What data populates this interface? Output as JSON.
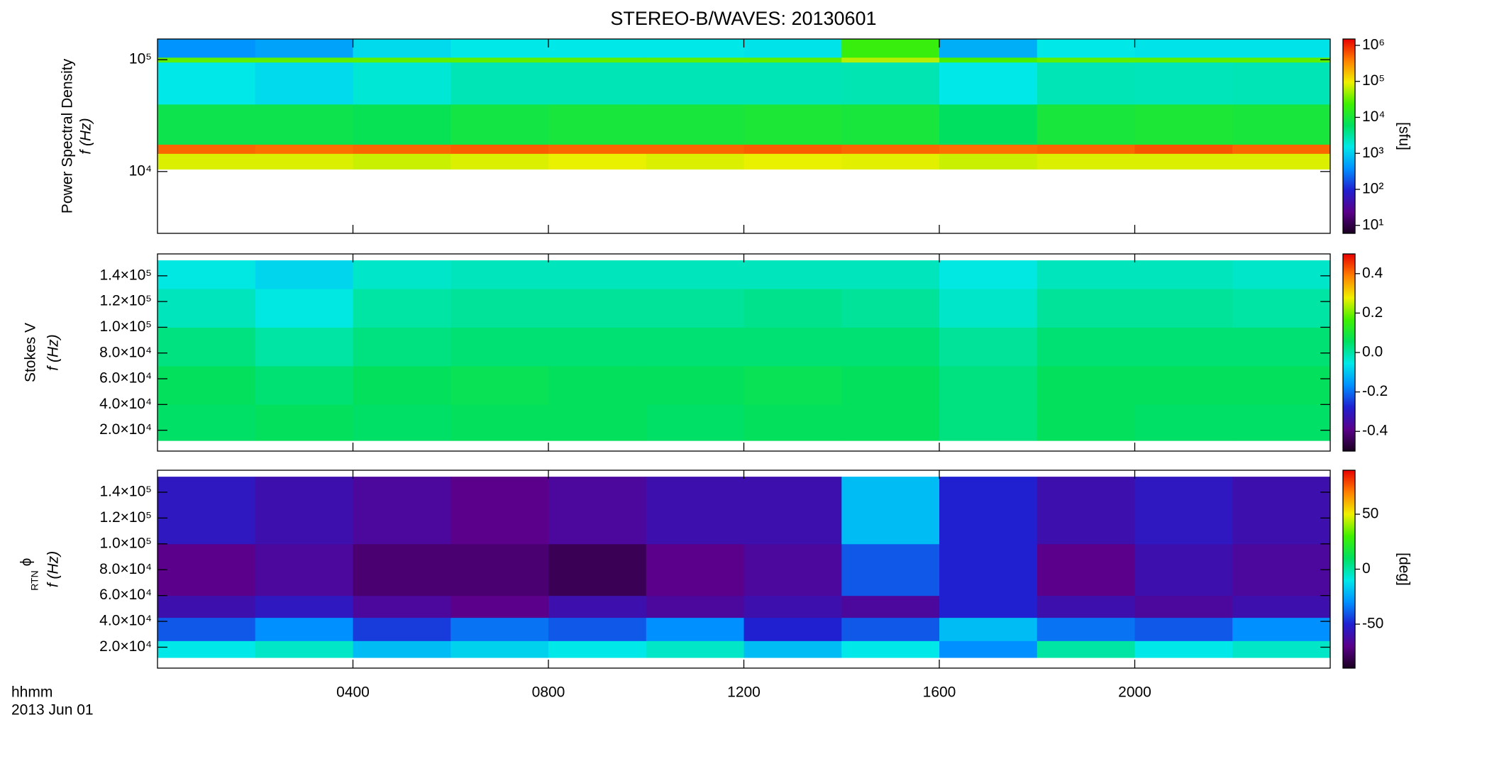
{
  "chart_data": [
    {
      "type": "heatmap",
      "title": "STEREO-B/WAVES: 20130601",
      "y_label": "Power Spectral Density",
      "y_unit_label": "f (Hz)",
      "log_y": true,
      "ylim": [
        2800,
        153000
      ],
      "yticks": [
        {
          "value": 10000,
          "label": "10⁴"
        },
        {
          "value": 100000,
          "label": "10⁵"
        }
      ],
      "xlim": [
        0,
        24
      ],
      "x_edges": [
        0,
        2,
        4,
        6,
        8,
        10,
        12,
        14,
        16,
        18,
        20,
        22,
        24
      ],
      "y_edges": [
        10500,
        14500,
        17500,
        40000,
        95000,
        105000,
        153000
      ],
      "z": [
        [
          80000,
          80000,
          70000,
          80000,
          90000,
          80000,
          90000,
          85000,
          70000,
          80000,
          80000,
          80000
        ],
        [
          500000,
          450000,
          500000,
          550000,
          500000,
          500000,
          550000,
          500000,
          450000,
          500000,
          600000,
          500000
        ],
        [
          8000,
          8000,
          7000,
          9000,
          10000,
          10000,
          11000,
          10000,
          6000,
          10000,
          11000,
          10000
        ],
        [
          1500,
          1200,
          1800,
          2500,
          2500,
          2500,
          2500,
          2600,
          1500,
          2500,
          2400,
          2500
        ],
        [
          30000,
          30000,
          30000,
          30000,
          30000,
          30000,
          30000,
          60000,
          25000,
          30000,
          30000,
          30000
        ],
        [
          400,
          500,
          1200,
          1500,
          1500,
          1500,
          1400,
          20000,
          600,
          1500,
          1400,
          1400
        ]
      ],
      "log_color": true,
      "clim": [
        6,
        1500000
      ],
      "cticks": [
        {
          "value": 10,
          "label": "10¹"
        },
        {
          "value": 100,
          "label": "10²"
        },
        {
          "value": 1000,
          "label": "10³"
        },
        {
          "value": 10000,
          "label": "10⁴"
        },
        {
          "value": 100000,
          "label": "10⁵"
        },
        {
          "value": 1000000,
          "label": "10⁶"
        }
      ],
      "colorbar_label": "[sfu]",
      "colormap": [
        "#1a0020",
        "#5a008a",
        "#2020d0",
        "#0090ff",
        "#00e8e8",
        "#00e060",
        "#40f000",
        "#f0f000",
        "#ff8000",
        "#e80000"
      ]
    },
    {
      "type": "heatmap",
      "y_label": "Stokes V",
      "y_unit_label": "f (Hz)",
      "log_y": false,
      "ylim": [
        3800,
        157000
      ],
      "yticks": [
        {
          "value": 20000,
          "label": "2.0×10⁴"
        },
        {
          "value": 40000,
          "label": "4.0×10⁴"
        },
        {
          "value": 60000,
          "label": "6.0×10⁴"
        },
        {
          "value": 80000,
          "label": "8.0×10⁴"
        },
        {
          "value": 100000,
          "label": "1.0×10⁵"
        },
        {
          "value": 120000,
          "label": "1.2×10⁵"
        },
        {
          "value": 140000,
          "label": "1.4×10⁵"
        }
      ],
      "xlim": [
        0,
        24
      ],
      "x_edges": [
        0,
        2,
        4,
        6,
        8,
        10,
        12,
        14,
        16,
        18,
        20,
        22,
        24
      ],
      "y_edges": [
        12000,
        40000,
        70000,
        100000,
        130000,
        152000
      ],
      "z": [
        [
          0.05,
          0.06,
          0.05,
          0.06,
          0.06,
          0.05,
          0.06,
          0.06,
          0.03,
          0.06,
          0.05,
          0.05
        ],
        [
          0.06,
          0.04,
          0.06,
          0.07,
          0.06,
          0.06,
          0.07,
          0.06,
          0.03,
          0.06,
          0.06,
          0.06
        ],
        [
          0.03,
          0.0,
          0.03,
          0.04,
          0.04,
          0.04,
          0.04,
          0.04,
          0.01,
          0.04,
          0.04,
          0.04
        ],
        [
          -0.02,
          -0.05,
          0.0,
          0.01,
          0.01,
          0.01,
          0.02,
          0.01,
          -0.03,
          0.01,
          0.01,
          0.0
        ],
        [
          -0.05,
          -0.08,
          -0.03,
          -0.02,
          -0.02,
          -0.02,
          -0.02,
          -0.02,
          -0.05,
          -0.02,
          -0.02,
          -0.03
        ]
      ],
      "log_color": false,
      "clim": [
        -0.5,
        0.5
      ],
      "cticks": [
        -0.4,
        -0.2,
        {
          "value": 0,
          "label": "0.0"
        },
        0.2,
        0.4
      ],
      "colormap": [
        "#1a0020",
        "#5a008a",
        "#2020d0",
        "#0090ff",
        "#00e8e8",
        "#00e060",
        "#40f000",
        "#f0f000",
        "#ff8000",
        "#e80000"
      ]
    },
    {
      "type": "heatmap",
      "y_label_symbol": "ϕ",
      "y_label_subscript": "RTN",
      "y_unit_label": "f (Hz)",
      "log_y": false,
      "ylim": [
        3800,
        157000
      ],
      "yticks": [
        {
          "value": 20000,
          "label": "2.0×10⁴"
        },
        {
          "value": 40000,
          "label": "4.0×10⁴"
        },
        {
          "value": 60000,
          "label": "6.0×10⁴"
        },
        {
          "value": 80000,
          "label": "8.0×10⁴"
        },
        {
          "value": 100000,
          "label": "1.0×10⁵"
        },
        {
          "value": 120000,
          "label": "1.2×10⁵"
        },
        {
          "value": 140000,
          "label": "1.4×10⁵"
        }
      ],
      "xlim": [
        0,
        24
      ],
      "xticks": [
        {
          "value": 4,
          "label": "0400"
        },
        {
          "value": 8,
          "label": "0800"
        },
        {
          "value": 12,
          "label": "1200"
        },
        {
          "value": 16,
          "label": "1600"
        },
        {
          "value": 20,
          "label": "2000"
        }
      ],
      "x_label": "hhmm",
      "date_label": "2013 Jun 01",
      "x_edges": [
        0,
        2,
        4,
        6,
        8,
        10,
        12,
        14,
        16,
        18,
        20,
        22,
        24
      ],
      "y_edges": [
        12000,
        25000,
        43000,
        60000,
        100000,
        152000
      ],
      "z": [
        [
          -10,
          -5,
          -20,
          -15,
          -10,
          -5,
          -20,
          -10,
          -30,
          0,
          -10,
          -5
        ],
        [
          -40,
          -30,
          -45,
          -35,
          -40,
          -30,
          -50,
          -40,
          -20,
          -35,
          -40,
          -30
        ],
        [
          -60,
          -55,
          -65,
          -70,
          -60,
          -65,
          -60,
          -65,
          -50,
          -60,
          -65,
          -60
        ],
        [
          -70,
          -65,
          -75,
          -75,
          -80,
          -70,
          -65,
          -40,
          -50,
          -70,
          -60,
          -65
        ],
        [
          -55,
          -60,
          -65,
          -70,
          -65,
          -60,
          -60,
          -20,
          -50,
          -60,
          -55,
          -60
        ]
      ],
      "log_color": false,
      "clim": [
        -90,
        90
      ],
      "cticks": [
        -50,
        0,
        50
      ],
      "colorbar_label": "[deg]",
      "colormap": [
        "#1a0020",
        "#5a008a",
        "#2020d0",
        "#0090ff",
        "#00e8e8",
        "#00e060",
        "#40f000",
        "#f0f000",
        "#ff8000",
        "#e80000"
      ]
    }
  ]
}
